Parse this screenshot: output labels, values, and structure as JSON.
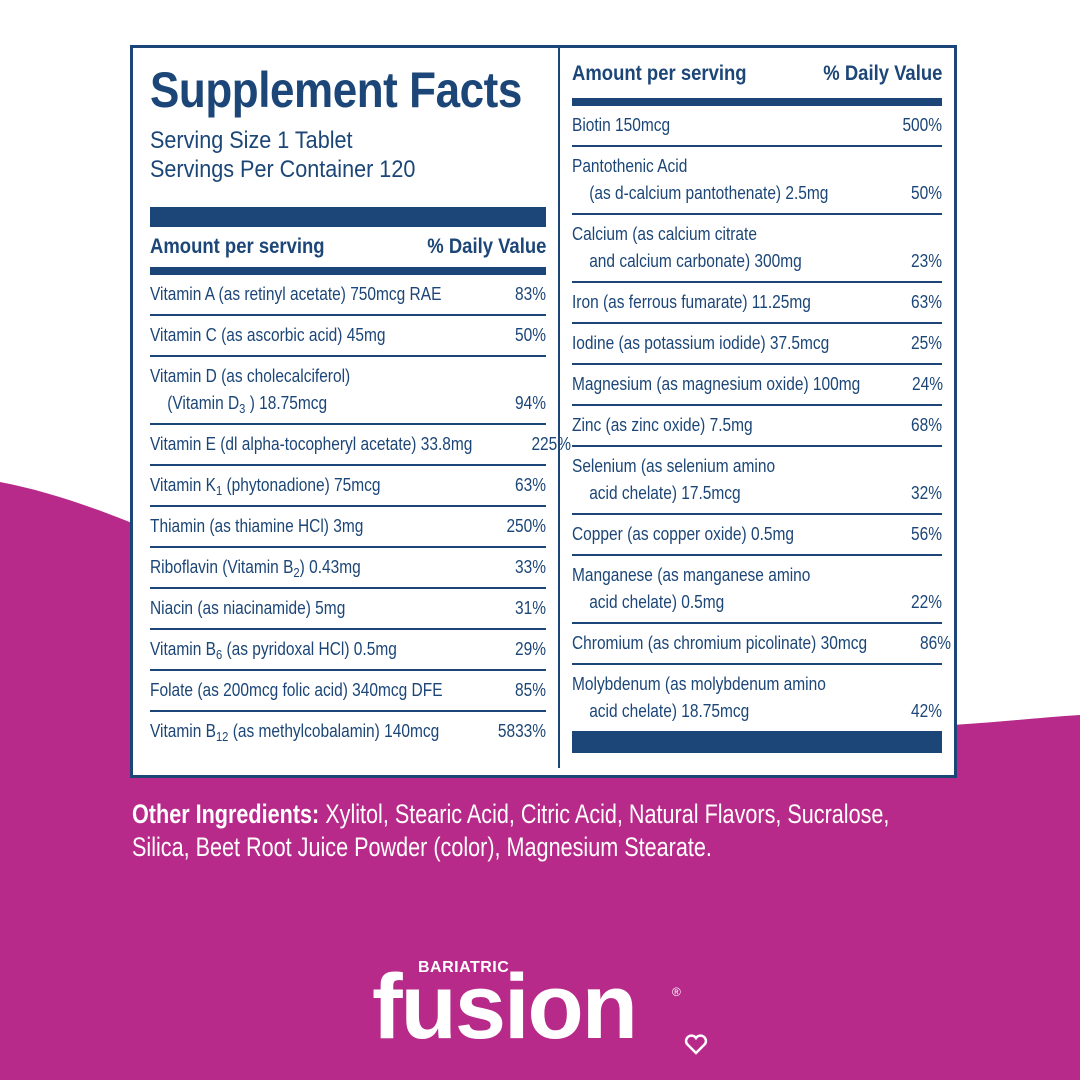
{
  "panel": {
    "title": "Supplement Facts",
    "serving_size": "Serving Size 1 Tablet",
    "servings_per_container": "Servings Per Container 120",
    "header_amount": "Amount per serving",
    "header_dv": "% Daily Value",
    "left_rows": [
      {
        "lines": [
          [
            "Vitamin A (as retinyl acetate) 750mcg RAE"
          ]
        ],
        "dv": "83%"
      },
      {
        "lines": [
          [
            "Vitamin C (as ascorbic acid) 45mg"
          ]
        ],
        "dv": "50%"
      },
      {
        "lines": [
          [
            "Vitamin D (as cholecalciferol)"
          ],
          [
            "(Vitamin D",
            "3",
            " ) 18.75mcg"
          ]
        ],
        "dv": "94%"
      },
      {
        "lines": [
          [
            "Vitamin E (dl alpha-tocopheryl acetate) 33.8mg"
          ]
        ],
        "dv": "225%"
      },
      {
        "lines": [
          [
            "Vitamin K",
            "1",
            " (phytonadione) 75mcg"
          ]
        ],
        "dv": "63%"
      },
      {
        "lines": [
          [
            "Thiamin (as thiamine HCl) 3mg"
          ]
        ],
        "dv": "250%"
      },
      {
        "lines": [
          [
            "Riboflavin (Vitamin B",
            "2",
            ") 0.43mg"
          ]
        ],
        "dv": "33%"
      },
      {
        "lines": [
          [
            "Niacin (as niacinamide) 5mg"
          ]
        ],
        "dv": "31%"
      },
      {
        "lines": [
          [
            "Vitamin B",
            "6",
            " (as pyridoxal HCl) 0.5mg"
          ]
        ],
        "dv": "29%"
      },
      {
        "lines": [
          [
            "Folate (as 200mcg folic acid) 340mcg DFE"
          ]
        ],
        "dv": "85%"
      },
      {
        "lines": [
          [
            "Vitamin B",
            "12",
            " (as methylcobalamin) 140mcg"
          ]
        ],
        "dv": "5833%"
      }
    ],
    "right_rows": [
      {
        "lines": [
          [
            "Biotin 150mcg"
          ]
        ],
        "dv": "500%"
      },
      {
        "lines": [
          [
            "Pantothenic Acid"
          ],
          [
            "(as d-calcium pantothenate) 2.5mg"
          ]
        ],
        "dv": "50%"
      },
      {
        "lines": [
          [
            "Calcium (as calcium citrate"
          ],
          [
            "and calcium carbonate) 300mg"
          ]
        ],
        "dv": "23%"
      },
      {
        "lines": [
          [
            "Iron (as ferrous fumarate) 11.25mg"
          ]
        ],
        "dv": "63%"
      },
      {
        "lines": [
          [
            "Iodine (as potassium iodide) 37.5mcg"
          ]
        ],
        "dv": "25%"
      },
      {
        "lines": [
          [
            "Magnesium (as magnesium oxide) 100mg"
          ]
        ],
        "dv": "24%"
      },
      {
        "lines": [
          [
            "Zinc (as zinc oxide) 7.5mg"
          ]
        ],
        "dv": "68%"
      },
      {
        "lines": [
          [
            "Selenium (as selenium amino"
          ],
          [
            "acid chelate) 17.5mcg"
          ]
        ],
        "dv": "32%"
      },
      {
        "lines": [
          [
            "Copper (as copper oxide) 0.5mg"
          ]
        ],
        "dv": "56%"
      },
      {
        "lines": [
          [
            "Manganese (as manganese amino"
          ],
          [
            "acid chelate) 0.5mg"
          ]
        ],
        "dv": "22%"
      },
      {
        "lines": [
          [
            "Chromium (as chromium picolinate) 30mcg"
          ]
        ],
        "dv": "86%"
      },
      {
        "lines": [
          [
            "Molybdenum (as molybdenum amino"
          ],
          [
            "acid chelate) 18.75mcg"
          ]
        ],
        "dv": "42%"
      }
    ]
  },
  "other_ingredients": {
    "label": "Other Ingredients:",
    "text": "Xylitol, Stearic Acid, Citric Acid, Natural Flavors, Sucralose, Silica, Beet Root Juice Powder (color), Magnesium Stearate."
  },
  "brand": {
    "subtitle": "BARIATRIC",
    "name": "fusion",
    "mark": "®"
  }
}
